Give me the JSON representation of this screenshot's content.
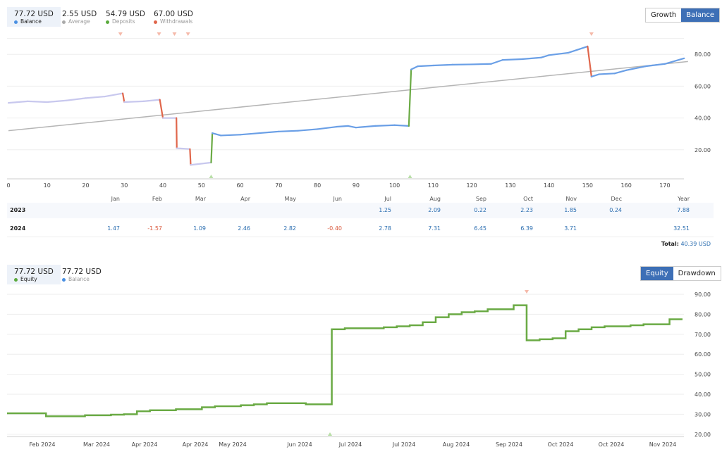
{
  "top_stats": [
    {
      "value": "77.72 USD",
      "label": "Balance",
      "color": "#4a90e2"
    },
    {
      "value": "2.55 USD",
      "label": "Average",
      "color": "#aaaaaa"
    },
    {
      "value": "54.79 USD",
      "label": "Deposits",
      "color": "#5aaa3c"
    },
    {
      "value": "67.00 USD",
      "label": "Withdrawals",
      "color": "#e0664b"
    }
  ],
  "top_toggle": {
    "growth": "Growth",
    "balance": "Balance",
    "active": "Balance"
  },
  "bottom_stats": [
    {
      "value": "77.72 USD",
      "label": "Equity",
      "color": "#5aaa3c"
    },
    {
      "value": "77.72 USD",
      "label": "Balance",
      "color": "#4a90e2"
    }
  ],
  "bottom_toggle": {
    "equity": "Equity",
    "drawdown": "Drawdown",
    "active": "Equity"
  },
  "table": {
    "headers": [
      "Jan",
      "Feb",
      "Mar",
      "Apr",
      "May",
      "Jun",
      "Jul",
      "Aug",
      "Sep",
      "Oct",
      "Nov",
      "Dec",
      "Year"
    ],
    "rows": [
      {
        "year": "2023",
        "values": [
          "",
          "",
          "",
          "",
          "",
          "",
          "1.25",
          "2.09",
          "0.22",
          "2.23",
          "1.85",
          "0.24",
          "7.88"
        ]
      },
      {
        "year": "2024",
        "values": [
          "1.47",
          "-1.57",
          "1.09",
          "2.46",
          "2.82",
          "-0.40",
          "2.78",
          "7.31",
          "6.45",
          "6.39",
          "3.71",
          "",
          "32.51"
        ]
      }
    ],
    "total_label": "Total:",
    "total_value": "40.39 USD"
  },
  "chart_data": [
    {
      "type": "line",
      "xlim": [
        0,
        176
      ],
      "ylim": [
        5,
        90
      ],
      "x_ticks": [
        0,
        10,
        20,
        30,
        40,
        50,
        60,
        70,
        80,
        90,
        100,
        110,
        120,
        130,
        140,
        150,
        160,
        170
      ],
      "y_ticks": [
        "20.00",
        "40.00",
        "60.00",
        "80.00"
      ],
      "colors": {
        "balance": "#6a9fe6",
        "early": "#c8c8ee",
        "deposit": "#6aaa44",
        "withdrawal": "#e0664b",
        "trend": "#b5b5b5"
      },
      "trend": [
        [
          0,
          32
        ],
        [
          176,
          75.5
        ]
      ],
      "balance": [
        [
          0,
          49.5
        ],
        [
          5,
          50.5
        ],
        [
          10,
          50
        ],
        [
          15,
          51
        ],
        [
          20,
          52.5
        ],
        [
          25,
          53.5
        ],
        [
          29.6,
          55.5,
          "w"
        ],
        [
          30,
          50
        ],
        [
          35,
          50.5
        ],
        [
          39.2,
          51.5,
          "w"
        ],
        [
          40,
          40
        ],
        [
          43.5,
          40,
          "w"
        ],
        [
          43.6,
          21
        ],
        [
          47,
          20.5,
          "w"
        ],
        [
          47.2,
          10.5
        ],
        [
          52.5,
          12,
          "d"
        ],
        [
          52.8,
          30.5
        ],
        [
          55,
          29
        ],
        [
          60,
          29.5
        ],
        [
          65,
          30.5
        ],
        [
          70,
          31.5
        ],
        [
          75,
          32
        ],
        [
          80,
          33
        ],
        [
          85,
          34.5
        ],
        [
          88,
          35
        ],
        [
          90,
          34
        ],
        [
          95,
          35
        ],
        [
          100,
          35.5
        ],
        [
          103.7,
          35,
          "d"
        ],
        [
          104.3,
          70.5
        ],
        [
          106,
          72.5
        ],
        [
          110,
          73
        ],
        [
          115,
          73.5
        ],
        [
          120,
          73.7
        ],
        [
          125,
          74
        ],
        [
          128,
          76.5
        ],
        [
          133,
          77
        ],
        [
          138,
          78
        ],
        [
          140,
          79.5
        ],
        [
          145,
          81
        ],
        [
          150,
          85,
          "w"
        ],
        [
          151,
          66
        ],
        [
          153,
          67.5
        ],
        [
          157,
          68
        ],
        [
          160,
          70
        ],
        [
          165,
          72.5
        ],
        [
          170,
          74
        ],
        [
          175,
          77.5
        ]
      ],
      "deposit_markers": [
        52.5,
        104
      ],
      "withdrawal_markers": [
        29,
        39,
        43,
        46.5,
        151
      ]
    },
    {
      "type": "line",
      "ylim": [
        18,
        93
      ],
      "y_ticks": [
        "20.00",
        "30.00",
        "40.00",
        "50.00",
        "60.00",
        "70.00",
        "80.00",
        "90.00"
      ],
      "x_labels": [
        "Feb 2024",
        "Mar 2024",
        "Apr 2024",
        "Apr 2024",
        "May 2024",
        "Jun 2024",
        "Jul 2024",
        "Jul 2024",
        "Aug 2024",
        "Sep 2024",
        "Oct 2024",
        "Oct 2024",
        "Nov 2024"
      ],
      "color": "#6aaa44",
      "equity": [
        30.5,
        30.5,
        30.5,
        29,
        29,
        29,
        29.5,
        29.5,
        29.8,
        30,
        31.5,
        32,
        32,
        32.5,
        32.5,
        33.5,
        34,
        34,
        34.5,
        35,
        35.5,
        35.5,
        35.5,
        35,
        35,
        72.5,
        73,
        73,
        73,
        73.5,
        74,
        74.5,
        76,
        78.5,
        80,
        81,
        81.5,
        82.5,
        82.5,
        84.5,
        67,
        67.5,
        68,
        71.5,
        72.5,
        73.5,
        74,
        74,
        74.5,
        75,
        75,
        77.5,
        77.5
      ]
    }
  ]
}
